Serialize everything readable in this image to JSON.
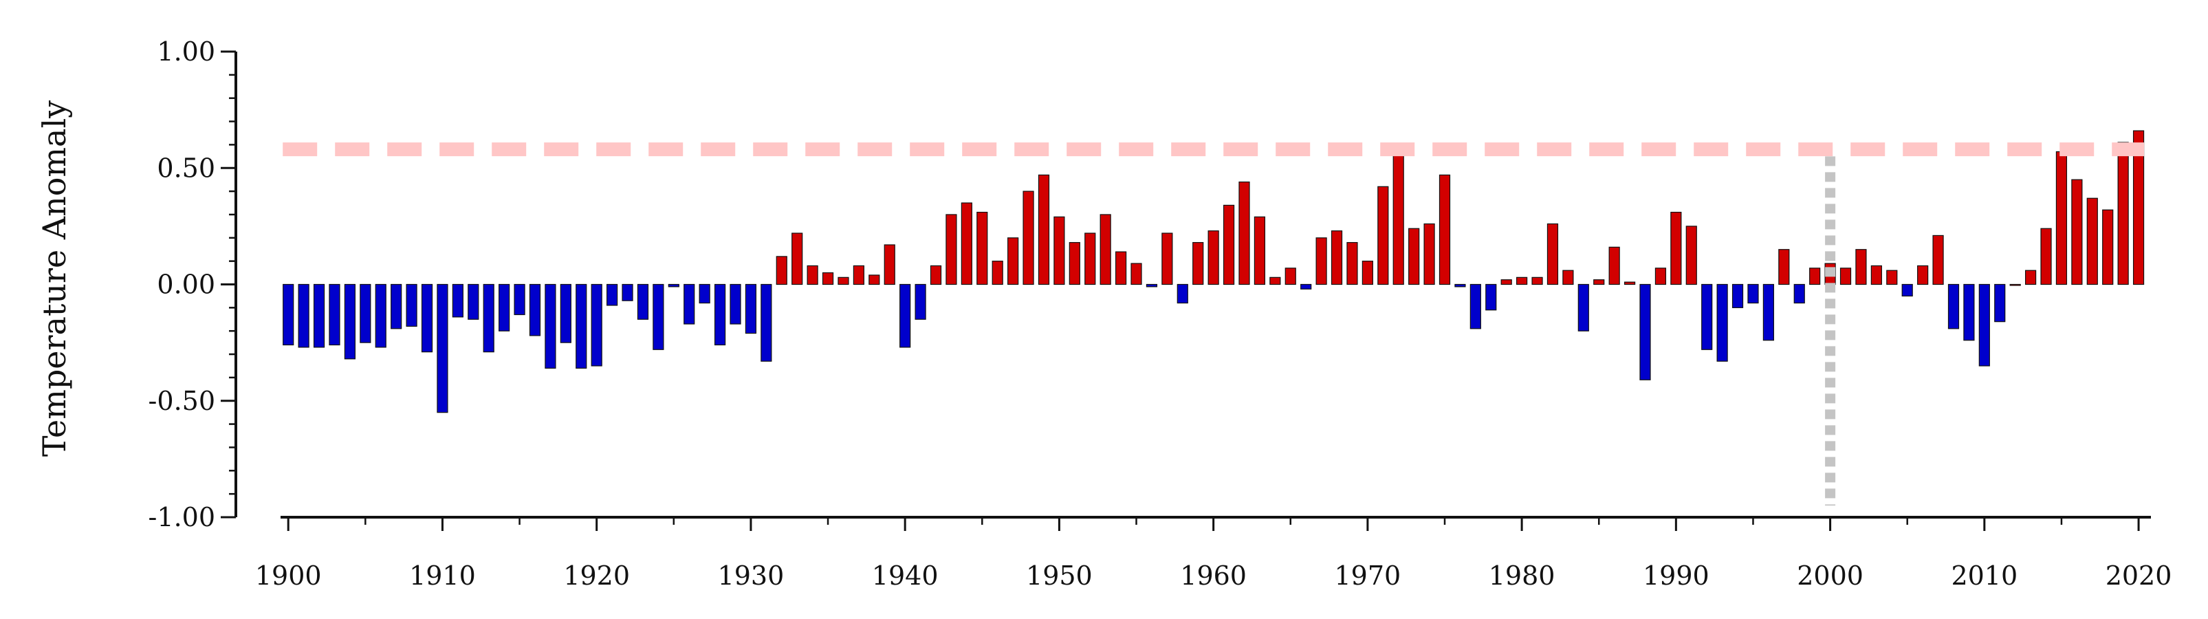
{
  "chart_data": {
    "type": "bar",
    "ylabel": "Temperature Anomaly",
    "xlabel": "",
    "title": "",
    "xlim": [
      1899.5,
      2020.8
    ],
    "ylim": [
      -1.0,
      1.0
    ],
    "x_tick_labels": [
      "1900",
      "1910",
      "1920",
      "1930",
      "1940",
      "1950",
      "1960",
      "1970",
      "1980",
      "1990",
      "2000",
      "2010",
      "2020"
    ],
    "y_tick_labels": [
      "1.00",
      "0.50",
      "0.00",
      "-0.50",
      "-1.00"
    ],
    "years": [
      1900,
      1901,
      1902,
      1903,
      1904,
      1905,
      1906,
      1907,
      1908,
      1909,
      1910,
      1911,
      1912,
      1913,
      1914,
      1915,
      1916,
      1917,
      1918,
      1919,
      1920,
      1921,
      1922,
      1923,
      1924,
      1925,
      1926,
      1927,
      1928,
      1929,
      1930,
      1931,
      1932,
      1933,
      1934,
      1935,
      1936,
      1937,
      1938,
      1939,
      1940,
      1941,
      1942,
      1943,
      1944,
      1945,
      1946,
      1947,
      1948,
      1949,
      1950,
      1951,
      1952,
      1953,
      1954,
      1955,
      1956,
      1957,
      1958,
      1959,
      1960,
      1961,
      1962,
      1963,
      1964,
      1965,
      1966,
      1967,
      1968,
      1969,
      1970,
      1971,
      1972,
      1973,
      1974,
      1975,
      1976,
      1977,
      1978,
      1979,
      1980,
      1981,
      1982,
      1983,
      1984,
      1985,
      1986,
      1987,
      1988,
      1989,
      1990,
      1991,
      1992,
      1993,
      1994,
      1995,
      1996,
      1997,
      1998,
      1999,
      2000,
      2001,
      2002,
      2003,
      2004,
      2005,
      2006,
      2007,
      2008,
      2009,
      2010,
      2011,
      2012,
      2013,
      2014,
      2015,
      2016,
      2017,
      2018,
      2019,
      2020
    ],
    "values": [
      -0.26,
      -0.27,
      -0.27,
      -0.26,
      -0.32,
      -0.25,
      -0.27,
      -0.19,
      -0.18,
      -0.29,
      -0.55,
      -0.14,
      -0.15,
      -0.29,
      -0.2,
      -0.13,
      -0.22,
      -0.36,
      -0.25,
      -0.36,
      -0.35,
      -0.09,
      -0.07,
      -0.15,
      -0.28,
      -0.01,
      -0.17,
      -0.08,
      -0.26,
      -0.17,
      -0.21,
      -0.33,
      0.12,
      0.22,
      0.08,
      0.05,
      0.03,
      0.08,
      0.04,
      0.17,
      -0.27,
      -0.15,
      0.08,
      0.3,
      0.35,
      0.31,
      0.1,
      0.2,
      0.4,
      0.47,
      0.29,
      0.18,
      0.22,
      0.3,
      0.14,
      0.09,
      -0.01,
      0.22,
      -0.08,
      0.18,
      0.23,
      0.34,
      0.44,
      0.29,
      0.03,
      0.07,
      -0.02,
      0.2,
      0.23,
      0.18,
      0.1,
      0.42,
      0.59,
      0.24,
      0.26,
      0.47,
      -0.01,
      -0.19,
      -0.11,
      0.02,
      0.03,
      0.03,
      0.26,
      0.06,
      -0.2,
      0.02,
      0.16,
      0.01,
      -0.41,
      0.07,
      0.31,
      0.25,
      -0.28,
      -0.33,
      -0.1,
      -0.08,
      -0.24,
      0.15,
      -0.08,
      0.07,
      0.09,
      0.07,
      0.15,
      0.08,
      0.06,
      -0.05,
      0.08,
      0.21,
      -0.19,
      -0.24,
      -0.35,
      -0.16,
      0.0,
      0.06,
      0.24,
      0.57,
      0.45,
      0.37,
      0.32,
      0.61,
      0.66
    ],
    "reference_line": {
      "y": 0.58,
      "style": "dashed",
      "color": "#ffc6c6"
    },
    "vertical_marker": {
      "x": 2000,
      "y_from": -0.95,
      "y_to": 0.55,
      "style": "dotted",
      "color": "#c4c4c4"
    },
    "colors": {
      "positive": "#d20000",
      "negative": "#0000cc",
      "edge": "#111111"
    },
    "grid": false
  }
}
